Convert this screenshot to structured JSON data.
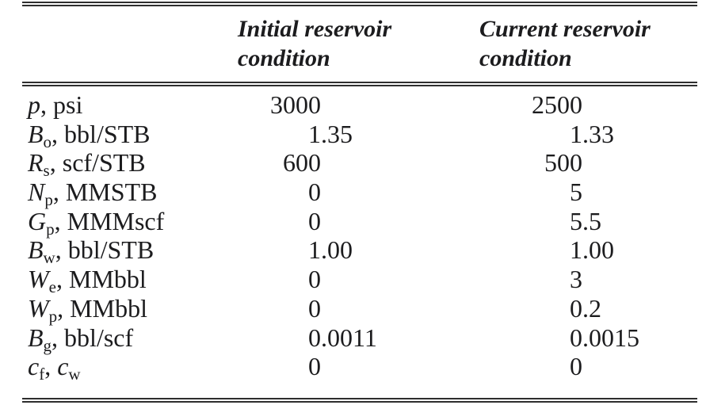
{
  "colors": {
    "background": "#ffffff",
    "text": "#1c1c1e",
    "rule": "#2e2e2e"
  },
  "table": {
    "col_headers": [
      {
        "line1": "Initial reservoir",
        "line2": "condition"
      },
      {
        "line1": "Current reservoir",
        "line2": "condition"
      }
    ],
    "rows": [
      {
        "name": "pressure",
        "label": [
          {
            "t": "p",
            "s": "it"
          },
          {
            "t": ", psi",
            "s": "pl"
          }
        ],
        "initial": {
          "int": "3000",
          "frac": ""
        },
        "current": {
          "int": "2500",
          "frac": ""
        }
      },
      {
        "name": "oil-fvf",
        "label": [
          {
            "t": "B",
            "s": "it"
          },
          {
            "t": "o",
            "s": "sub"
          },
          {
            "t": ", bbl/STB",
            "s": "pl"
          }
        ],
        "initial": {
          "int": "1",
          "frac": ".35"
        },
        "current": {
          "int": "1",
          "frac": ".33"
        }
      },
      {
        "name": "solution-gor",
        "label": [
          {
            "t": "R",
            "s": "it"
          },
          {
            "t": "s",
            "s": "sub"
          },
          {
            "t": ", scf/STB",
            "s": "pl"
          }
        ],
        "initial": {
          "int": "600",
          "frac": ""
        },
        "current": {
          "int": "500",
          "frac": ""
        }
      },
      {
        "name": "cum-oil-produced",
        "label": [
          {
            "t": "N",
            "s": "it"
          },
          {
            "t": "p",
            "s": "sub"
          },
          {
            "t": ", MMSTB",
            "s": "pl"
          }
        ],
        "initial": {
          "int": "0",
          "frac": ""
        },
        "current": {
          "int": "5",
          "frac": ""
        }
      },
      {
        "name": "cum-gas-produced",
        "label": [
          {
            "t": "G",
            "s": "it"
          },
          {
            "t": "p",
            "s": "sub"
          },
          {
            "t": ", MMMscf",
            "s": "pl"
          }
        ],
        "initial": {
          "int": "0",
          "frac": ""
        },
        "current": {
          "int": "5",
          "frac": ".5"
        }
      },
      {
        "name": "water-fvf",
        "label": [
          {
            "t": "B",
            "s": "it"
          },
          {
            "t": "w",
            "s": "sub"
          },
          {
            "t": ", bbl/STB",
            "s": "pl"
          }
        ],
        "initial": {
          "int": "1",
          "frac": ".00"
        },
        "current": {
          "int": "1",
          "frac": ".00"
        }
      },
      {
        "name": "water-influx",
        "label": [
          {
            "t": "W",
            "s": "it"
          },
          {
            "t": "e",
            "s": "sub"
          },
          {
            "t": ", MMbbl",
            "s": "pl"
          }
        ],
        "initial": {
          "int": "0",
          "frac": ""
        },
        "current": {
          "int": "3",
          "frac": ""
        }
      },
      {
        "name": "cum-water-produced",
        "label": [
          {
            "t": "W",
            "s": "it"
          },
          {
            "t": "p",
            "s": "sub"
          },
          {
            "t": ", MMbbl",
            "s": "pl"
          }
        ],
        "initial": {
          "int": "0",
          "frac": ""
        },
        "current": {
          "int": "0",
          "frac": ".2"
        }
      },
      {
        "name": "gas-fvf",
        "label": [
          {
            "t": "B",
            "s": "it"
          },
          {
            "t": "g",
            "s": "sub"
          },
          {
            "t": ", bbl/scf",
            "s": "pl"
          }
        ],
        "initial": {
          "int": "0",
          "frac": ".0011"
        },
        "current": {
          "int": "0",
          "frac": ".0015"
        }
      },
      {
        "name": "compressibilities",
        "label": [
          {
            "t": "c",
            "s": "it"
          },
          {
            "t": "f",
            "s": "sub"
          },
          {
            "t": ", ",
            "s": "pl"
          },
          {
            "t": "c",
            "s": "it"
          },
          {
            "t": "w",
            "s": "sub"
          }
        ],
        "initial": {
          "int": "0",
          "frac": ""
        },
        "current": {
          "int": "0",
          "frac": ""
        }
      }
    ]
  }
}
